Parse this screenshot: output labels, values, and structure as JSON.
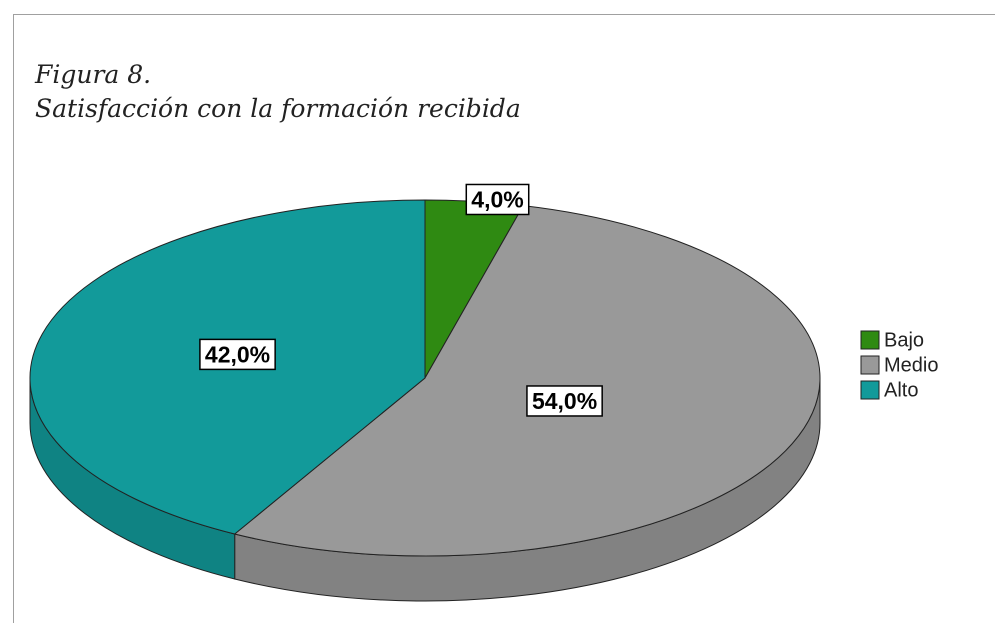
{
  "chart_data": {
    "type": "pie",
    "title": "Figura 8.",
    "subtitle": "Satisfacción con la formación recibida",
    "categories": [
      "Bajo",
      "Medio",
      "Alto"
    ],
    "values": [
      4,
      54,
      42
    ],
    "value_labels": [
      "4,0%",
      "54,0%",
      "42,0%"
    ],
    "colors": [
      "#2f8a12",
      "#999999",
      "#129a9a"
    ],
    "legend": "right"
  }
}
